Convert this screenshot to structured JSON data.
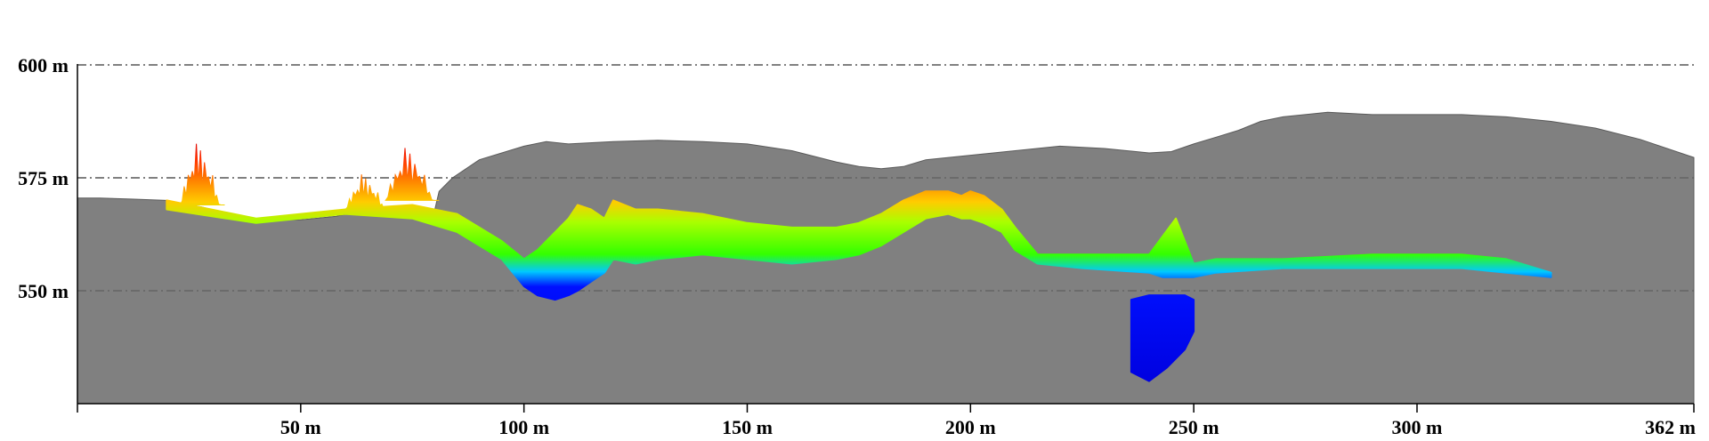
{
  "chart_data": {
    "type": "area",
    "title": "",
    "x_unit": "m",
    "y_unit": "m",
    "xlim": [
      0,
      362
    ],
    "ylim": [
      525,
      612
    ],
    "x_ticks": [
      {
        "value": 50,
        "label": "50 m"
      },
      {
        "value": 100,
        "label": "100 m"
      },
      {
        "value": 150,
        "label": "150 m"
      },
      {
        "value": 200,
        "label": "200 m"
      },
      {
        "value": 250,
        "label": "250 m"
      },
      {
        "value": 300,
        "label": "300 m"
      },
      {
        "value": 362,
        "label": "362 m"
      }
    ],
    "y_ticks": [
      {
        "value": 600,
        "label": "600 m"
      },
      {
        "value": 575,
        "label": "575 m"
      },
      {
        "value": 550,
        "label": "550 m"
      }
    ],
    "grid": "horizontal dash-dot at y ticks",
    "colors": {
      "rock": "#808080",
      "background": "#ffffff",
      "elevation_scale": [
        "#0000dd",
        "#00c8ff",
        "#33ff00",
        "#ffcc00",
        "#ff8800",
        "#dd0000"
      ]
    },
    "surface_profile": {
      "x": [
        0,
        5,
        12,
        20,
        28,
        35,
        42,
        50,
        58,
        65,
        70,
        75,
        78,
        80,
        81,
        84,
        90,
        100,
        105,
        110,
        120,
        130,
        140,
        150,
        160,
        170,
        175,
        180,
        185,
        190,
        200,
        210,
        220,
        230,
        240,
        245,
        250,
        255,
        260,
        265,
        270,
        280,
        290,
        300,
        310,
        320,
        330,
        340,
        350,
        362
      ],
      "y": [
        570.5,
        570.5,
        570.3,
        570.0,
        568.5,
        566.5,
        565.8,
        565.7,
        566.5,
        568.0,
        568.5,
        568.3,
        568.0,
        567.8,
        572.0,
        575.0,
        579.0,
        582.0,
        583.0,
        582.5,
        583.0,
        583.3,
        583.0,
        582.5,
        581.0,
        578.5,
        577.5,
        577.0,
        577.5,
        579.0,
        580.0,
        581.0,
        582.0,
        581.5,
        580.5,
        580.8,
        582.5,
        584.0,
        585.5,
        587.5,
        588.5,
        589.5,
        589.0,
        589.0,
        589.0,
        588.5,
        587.5,
        586.0,
        583.5,
        579.5
      ]
    },
    "cave_passages": [
      {
        "name": "",
        "top": {
          "x": [
            20,
            40,
            60,
            75,
            85,
            95,
            100,
            103,
            107,
            110,
            112,
            115,
            118,
            120,
            125,
            130,
            140,
            150,
            160,
            170,
            175,
            180,
            185,
            190,
            195,
            198,
            200,
            203,
            207,
            210,
            215,
            225,
            240,
            243,
            246,
            248,
            250,
            255,
            270,
            290,
            310,
            320,
            330
          ],
          "y": [
            570,
            566,
            568,
            569,
            567,
            561,
            557,
            559,
            563,
            566,
            569,
            568,
            566,
            570,
            568,
            568,
            567,
            565,
            564,
            564,
            565,
            567,
            570,
            572,
            572,
            571,
            572,
            571,
            568,
            564,
            558,
            558,
            558,
            562,
            566,
            561,
            556,
            557,
            557,
            558,
            558,
            557,
            554
          ]
        },
        "bottom": {
          "x": [
            20,
            40,
            60,
            75,
            85,
            95,
            100,
            103,
            107,
            110,
            112,
            115,
            118,
            120,
            125,
            130,
            140,
            150,
            160,
            170,
            175,
            180,
            185,
            190,
            195,
            198,
            200,
            203,
            207,
            210,
            215,
            225,
            240,
            243,
            246,
            248,
            250,
            255,
            270,
            290,
            310,
            320,
            330
          ],
          "y": [
            568,
            565,
            567,
            566,
            563,
            557,
            551,
            549,
            548,
            549,
            550,
            552,
            554,
            557,
            556,
            557,
            558,
            557,
            556,
            557,
            558,
            560,
            563,
            566,
            567,
            566,
            566,
            565,
            563,
            559,
            556,
            555,
            554,
            553,
            553,
            553,
            553,
            554,
            555,
            555,
            555,
            554,
            553
          ]
        }
      },
      {
        "name": "",
        "top": {
          "x": [
            236,
            240,
            244,
            248,
            250
          ],
          "y": [
            548,
            549,
            549,
            549,
            548
          ]
        },
        "bottom": {
          "x": [
            236,
            240,
            244,
            248,
            250
          ],
          "y": [
            532,
            530,
            533,
            537,
            541
          ]
        }
      }
    ],
    "tree_clusters": [
      {
        "x_range": [
          23,
          33
        ],
        "top": 583,
        "base": 569
      },
      {
        "x_range": [
          60,
          70
        ],
        "top": 576,
        "base": 568
      },
      {
        "x_range": [
          69,
          81
        ],
        "top": 582,
        "base": 570
      }
    ]
  }
}
